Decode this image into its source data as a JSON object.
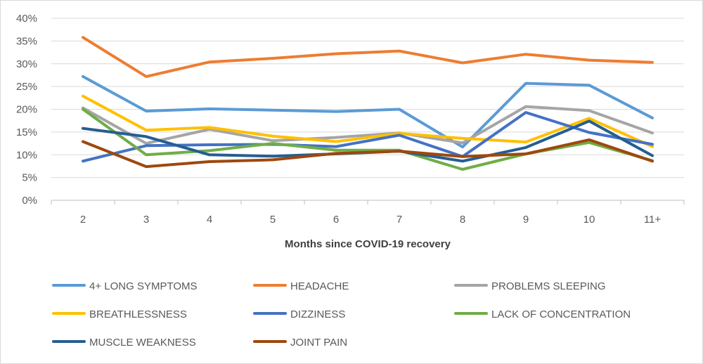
{
  "chart_data": {
    "type": "line",
    "title": "",
    "xlabel": "Months since COVID-19 recovery",
    "ylabel": "",
    "categories": [
      "2",
      "3",
      "4",
      "5",
      "6",
      "7",
      "8",
      "9",
      "10",
      "11+"
    ],
    "ylim": [
      0,
      40
    ],
    "yticks": [
      "0%",
      "5%",
      "10%",
      "15%",
      "20%",
      "25%",
      "30%",
      "35%",
      "40%"
    ],
    "grid": true,
    "legend_position": "bottom",
    "series": [
      {
        "name": "4+ LONG SYMPTOMS",
        "color": "#5b9bd5",
        "values": [
          27.2,
          19.6,
          20.1,
          19.8,
          19.5,
          20.0,
          11.7,
          25.7,
          25.3,
          18.1
        ]
      },
      {
        "name": "HEADACHE",
        "color": "#ed7d31",
        "values": [
          35.8,
          27.2,
          30.4,
          31.2,
          32.2,
          32.8,
          30.2,
          32.1,
          30.8,
          30.3
        ]
      },
      {
        "name": "PROBLEMS SLEEPING",
        "color": "#a5a5a5",
        "values": [
          20.3,
          12.5,
          15.6,
          13.1,
          13.8,
          14.8,
          12.6,
          20.6,
          19.7,
          14.8
        ]
      },
      {
        "name": "BREATHLESSNESS",
        "color": "#ffc000",
        "values": [
          22.9,
          15.4,
          16.0,
          14.1,
          12.9,
          14.7,
          13.6,
          12.8,
          18.0,
          11.8
        ]
      },
      {
        "name": "DIZZINESS",
        "color": "#4472c4",
        "values": [
          8.6,
          12.0,
          12.2,
          12.3,
          11.8,
          14.3,
          9.6,
          19.3,
          14.9,
          12.3
        ]
      },
      {
        "name": "LACK OF CONCENTRATION",
        "color": "#70ad47",
        "values": [
          20.0,
          10.0,
          10.9,
          12.5,
          11.0,
          11.0,
          6.8,
          10.2,
          12.7,
          8.7
        ]
      },
      {
        "name": "MUSCLE WEAKNESS",
        "color": "#255e91",
        "values": [
          15.8,
          14.0,
          10.0,
          9.7,
          10.2,
          10.8,
          8.6,
          11.6,
          17.4,
          9.8
        ]
      },
      {
        "name": "JOINT PAIN",
        "color": "#9e480e",
        "values": [
          12.9,
          7.4,
          8.5,
          8.9,
          10.3,
          10.8,
          9.6,
          10.2,
          13.3,
          8.6
        ]
      }
    ]
  }
}
